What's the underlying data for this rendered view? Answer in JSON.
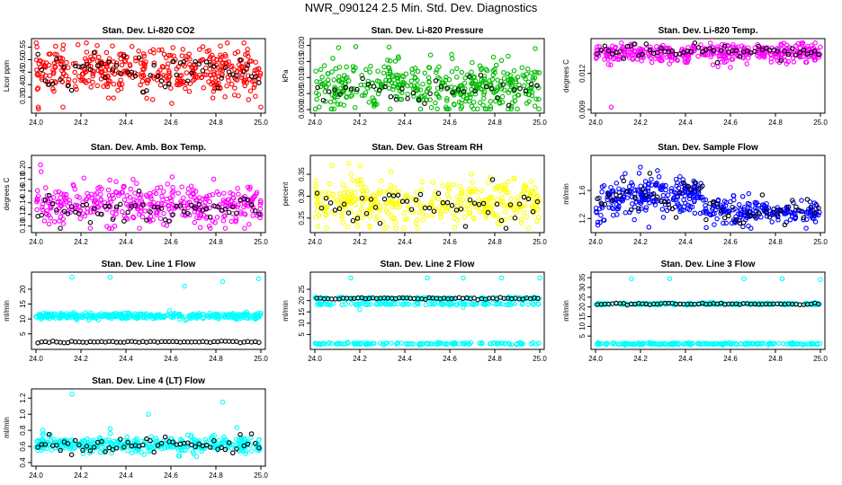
{
  "title": "NWR_090124  2.5 Min. Std. Dev. Diagnostics",
  "colors": {
    "red": "#ff0000",
    "green": "#00bb00",
    "magenta": "#ff00ff",
    "yellow": "#ffff00",
    "blue": "#0000ff",
    "cyan": "#00ffff",
    "black": "#000000"
  },
  "chart_data": [
    {
      "type": "scatter",
      "title": "Stan. Dev. Li-820 CO2",
      "ylabel": "Licor ppm",
      "xlim": [
        24.0,
        25.0
      ],
      "ylim": [
        0.3,
        0.57
      ],
      "xticks": [
        "24.0",
        "24.2",
        "24.4",
        "24.6",
        "24.8",
        "25.0"
      ],
      "yticks": [
        "0.35",
        "0.40",
        "0.45",
        "0.50",
        "0.55"
      ],
      "color": "#ff0000",
      "pattern": {
        "center": 0.455,
        "spread": 0.045,
        "n": 420,
        "outliers": [
          [
            24.34,
            0.555
          ],
          [
            24.82,
            0.555
          ],
          [
            24.01,
            0.31
          ],
          [
            25.0,
            0.31
          ],
          [
            24.12,
            0.31
          ]
        ]
      },
      "black_pattern": {
        "center": 0.45,
        "spread": 0.04,
        "n": 60
      }
    },
    {
      "type": "scatter",
      "title": "Stan. Dev. Li-820 Pressure",
      "ylabel": "kPa",
      "xlim": [
        24.0,
        25.0
      ],
      "ylim": [
        0.0,
        0.021
      ],
      "xticks": [
        "24.0",
        "24.2",
        "24.4",
        "24.6",
        "24.8",
        "25.0"
      ],
      "yticks": [
        "0.000",
        "0.005",
        "0.010",
        "0.015",
        "0.020"
      ],
      "color": "#00bb00",
      "pattern": {
        "center": 0.007,
        "spread": 0.004,
        "n": 420,
        "outliers": [
          [
            24.33,
            0.0195
          ],
          [
            24.98,
            0.019
          ],
          [
            24.08,
            0.016
          ]
        ]
      },
      "black_pattern": {
        "center": 0.006,
        "spread": 0.0025,
        "n": 40
      }
    },
    {
      "type": "scatter",
      "title": "Stan. Dev. Li-820 Temp.",
      "ylabel": "degrees C",
      "xlim": [
        24.0,
        25.0
      ],
      "ylim": [
        0.009,
        0.0146
      ],
      "xticks": [
        "24.0",
        "24.2",
        "24.4",
        "24.6",
        "24.8",
        "25.0"
      ],
      "yticks": [
        "0.009",
        "0.012"
      ],
      "color": "#ff00ff",
      "pattern": {
        "center": 0.0137,
        "spread": 0.0004,
        "n": 380,
        "outliers": [
          [
            24.07,
            0.0092
          ],
          [
            24.6,
            0.0125
          ],
          [
            24.85,
            0.0128
          ]
        ]
      },
      "black_pattern": {
        "center": 0.0138,
        "spread": 0.0003,
        "n": 60
      }
    },
    {
      "type": "scatter",
      "title": "Stan. Dev. Amb. Box Temp.",
      "ylabel": "degrees C",
      "xlim": [
        24.0,
        25.0
      ],
      "ylim": [
        0.095,
        0.215
      ],
      "xticks": [
        "24.0",
        "24.2",
        "24.4",
        "24.6",
        "24.8",
        "25.0"
      ],
      "yticks": [
        "0.10",
        "0.12",
        "0.14",
        "0.16",
        "0.18",
        "0.20"
      ],
      "color": "#ff00ff",
      "pattern": {
        "center": 0.138,
        "spread": 0.017,
        "n": 380,
        "outliers": [
          [
            24.02,
            0.205
          ],
          [
            24.35,
            0.1
          ]
        ]
      },
      "black_pattern": {
        "center": 0.125,
        "spread": 0.012,
        "n": 60
      }
    },
    {
      "type": "scatter",
      "title": "Stan. Dev. Gas Stream RH",
      "ylabel": "percent",
      "xlim": [
        24.0,
        25.0
      ],
      "ylim": [
        0.225,
        0.385
      ],
      "xticks": [
        "24.0",
        "24.2",
        "24.4",
        "24.6",
        "24.8",
        "25.0"
      ],
      "yticks": [
        "0.25",
        "0.30",
        "0.35"
      ],
      "color": "#ffff00",
      "pattern": {
        "center": 0.285,
        "spread": 0.025,
        "n": 380,
        "outliers": [
          [
            24.15,
            0.375
          ],
          [
            24.2,
            0.37
          ]
        ]
      },
      "black_pattern": {
        "center": 0.285,
        "spread": 0.025,
        "n": 50
      }
    },
    {
      "type": "scatter",
      "title": "Stan. Dev. Sample Flow",
      "ylabel": "ml/min",
      "xlim": [
        24.0,
        25.0
      ],
      "ylim": [
        1.05,
        2.05
      ],
      "xticks": [
        "24.0",
        "24.2",
        "24.4",
        "24.6",
        "24.8",
        "25.0"
      ],
      "yticks": [
        "1.2",
        "1.6"
      ],
      "color": "#0000ff",
      "pattern": {
        "trend": true,
        "n": 420
      },
      "black_pattern": {
        "trend": true,
        "n": 60
      }
    },
    {
      "type": "scatter",
      "title": "Stan. Dev. Line 1 Flow",
      "ylabel": "ml/min",
      "xlim": [
        24.0,
        25.0
      ],
      "ylim": [
        1.0,
        24.5
      ],
      "xticks": [
        "24.0",
        "24.2",
        "24.4",
        "24.6",
        "24.8",
        "25.0"
      ],
      "yticks": [
        "5",
        "10",
        "15",
        "20"
      ],
      "color": "#00ffff",
      "pattern": {
        "center": 11.0,
        "spread": 0.5,
        "n": 380,
        "outliers": [
          [
            24.16,
            24.0
          ],
          [
            24.33,
            24.0
          ],
          [
            24.66,
            21.0
          ],
          [
            24.83,
            22.5
          ],
          [
            24.99,
            23.5
          ]
        ]
      },
      "black_pattern": {
        "center": 2.3,
        "spread": 0.15,
        "n": 60
      }
    },
    {
      "type": "scatter",
      "title": "Stan. Dev. Line 2 Flow",
      "ylabel": "ml/min",
      "xlim": [
        24.0,
        25.0
      ],
      "ylim": [
        0.0,
        31.0
      ],
      "xticks": [
        "24.0",
        "24.2",
        "24.4",
        "24.6",
        "24.8",
        "25.0"
      ],
      "yticks": [
        "5",
        "10",
        "15",
        "20",
        "25"
      ],
      "color": "#00ffff",
      "pattern": {
        "bands": [
          18.5,
          21.0,
          1.0
        ],
        "n": 380,
        "outliers": [
          [
            24.16,
            30.0
          ],
          [
            24.5,
            30.0
          ],
          [
            24.66,
            30.0
          ],
          [
            24.83,
            30.0
          ],
          [
            25.0,
            30.0
          ],
          [
            24.2,
            16.0
          ],
          [
            24.66,
            17.0
          ]
        ]
      },
      "black_pattern": {
        "center": 21.0,
        "spread": 0.2,
        "n": 60
      }
    },
    {
      "type": "scatter",
      "title": "Stan. Dev. Line 3 Flow",
      "ylabel": "ml/min",
      "xlim": [
        24.0,
        25.0
      ],
      "ylim": [
        0.0,
        36.0
      ],
      "xticks": [
        "24.0",
        "24.2",
        "24.4",
        "24.6",
        "24.8",
        "25.0"
      ],
      "yticks": [
        "5",
        "10",
        "15",
        "20",
        "25",
        "30",
        "35"
      ],
      "color": "#00ffff",
      "pattern": {
        "bands": [
          21.5,
          1.0
        ],
        "n": 380,
        "outliers": [
          [
            24.16,
            34.5
          ],
          [
            24.33,
            34.5
          ],
          [
            24.66,
            34.5
          ],
          [
            24.83,
            34.5
          ],
          [
            25.0,
            34.0
          ]
        ]
      },
      "black_pattern": {
        "center": 21.5,
        "spread": 0.2,
        "n": 60
      }
    },
    {
      "type": "scatter",
      "title": "Stan. Dev. Line 4 (LT) Flow",
      "ylabel": "ml/min",
      "xlim": [
        24.0,
        25.0
      ],
      "ylim": [
        0.4,
        1.27
      ],
      "xticks": [
        "24.0",
        "24.2",
        "24.4",
        "24.6",
        "24.8",
        "25.0"
      ],
      "yticks": [
        "0.4",
        "0.6",
        "0.8",
        "1.0",
        "1.2"
      ],
      "color": "#00ffff",
      "pattern": {
        "center": 0.62,
        "spread": 0.05,
        "n": 380,
        "outliers": [
          [
            24.16,
            1.25
          ],
          [
            24.83,
            1.15
          ],
          [
            24.5,
            1.0
          ],
          [
            24.33,
            0.82
          ],
          [
            24.03,
            0.8
          ]
        ]
      },
      "black_pattern": {
        "center": 0.62,
        "spread": 0.05,
        "n": 60
      }
    }
  ]
}
